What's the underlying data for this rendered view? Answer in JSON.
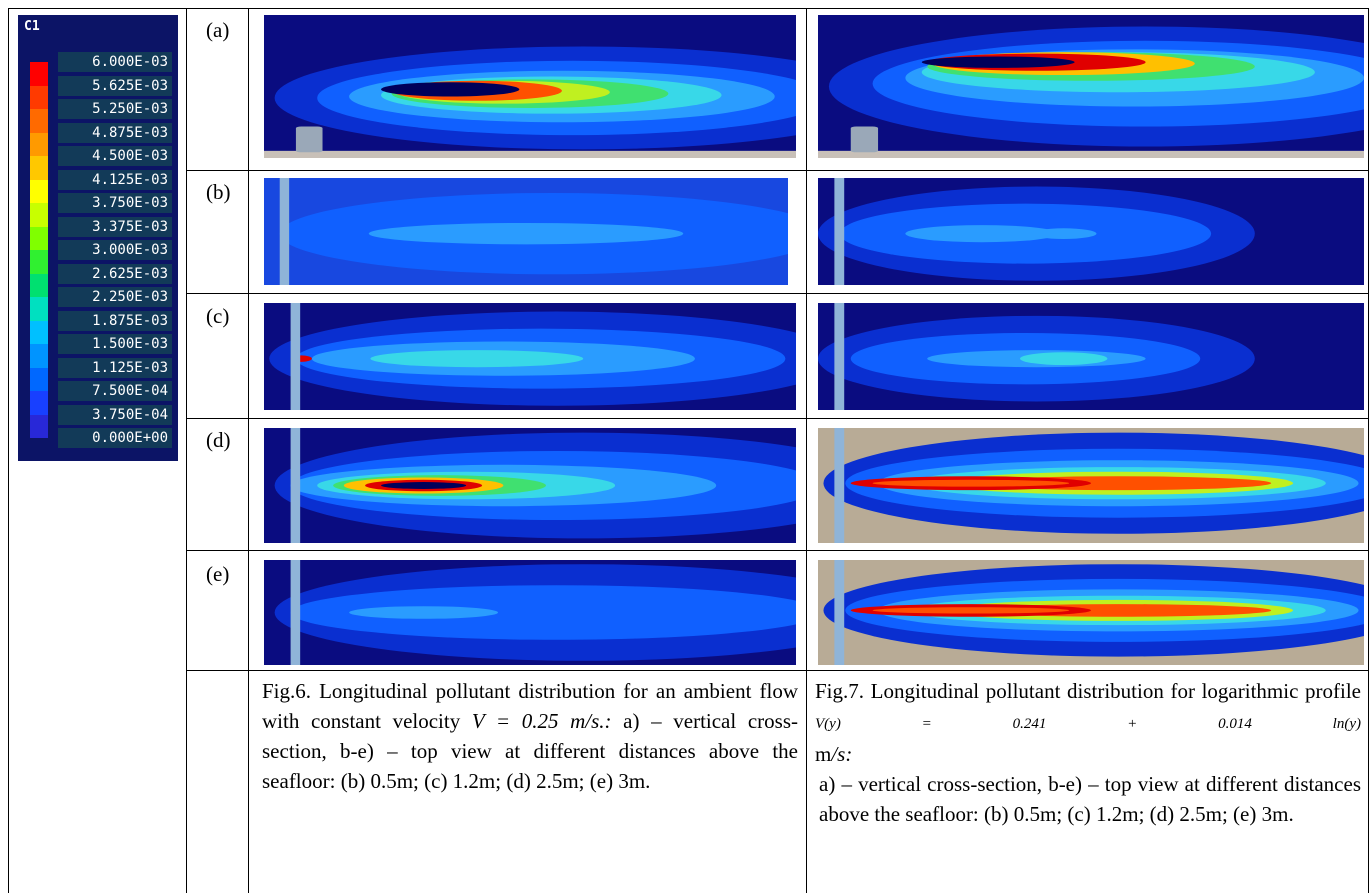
{
  "legend": {
    "title": "C1",
    "labels": [
      "6.000E-03",
      "5.625E-03",
      "5.250E-03",
      "4.875E-03",
      "4.500E-03",
      "4.125E-03",
      "3.750E-03",
      "3.375E-03",
      "3.000E-03",
      "2.625E-03",
      "2.250E-03",
      "1.875E-03",
      "1.500E-03",
      "1.125E-03",
      "7.500E-04",
      "3.750E-04",
      "0.000E+00"
    ],
    "colors": [
      "#ff0000",
      "#ff3a00",
      "#ff6a00",
      "#ff9a00",
      "#ffc800",
      "#ffff00",
      "#c8ff00",
      "#80ff00",
      "#30f030",
      "#00e070",
      "#00e0c0",
      "#00c0ff",
      "#0094ff",
      "#0068ff",
      "#1840ff",
      "#2828d8"
    ]
  },
  "rows": [
    "(a)",
    "(b)",
    "(c)",
    "(d)",
    "(e)"
  ],
  "fig6_caption": [
    "Fig.6. Longitudinal pollutant distribution for an ambient flow with constant velocity ",
    "V = 0.25 m/s.:",
    " a) – vertical cross-section, b-e) – top view at different distances above the seafloor: (b) 0.5m; (c) 1.2m; (d) 2.5m; (e) 3m."
  ],
  "fig7_caption": [
    "Fig.7. Longitudinal pollutant distribution for logarithmic profile",
    "V(y) = 0.241 + 0.014 ln(y)",
    "m",
    "/s:",
    "a) – vertical cross-section, b-e) – top view at different distances above the seafloor: (b) 0.5m; (c) 1.2m; (d) 2.5m; (e) 3m."
  ]
}
